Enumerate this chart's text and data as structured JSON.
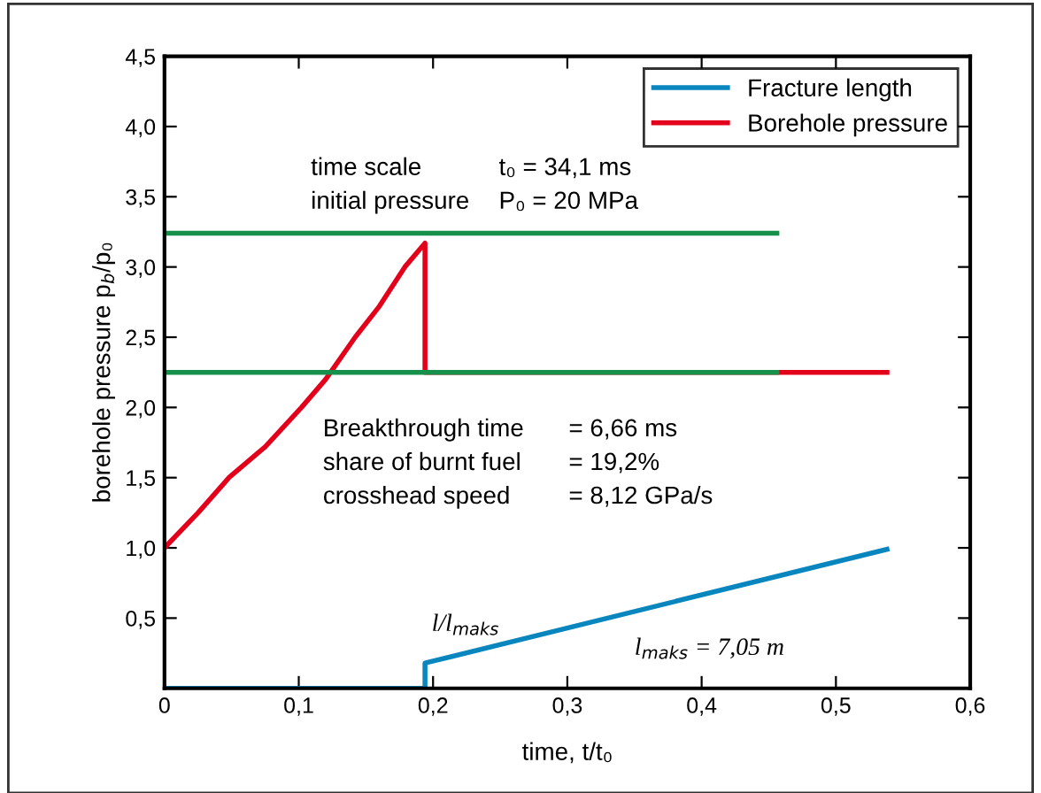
{
  "chart_data": {
    "type": "line",
    "xlabel": "time, t/t₀",
    "ylabel": "borehole pressure p$_{b}$/p₀",
    "xlim": [
      0,
      0.6
    ],
    "ylim": [
      0,
      4.5
    ],
    "xticks": [
      0,
      {
        "value": 0.1,
        "label": "0,1"
      },
      {
        "value": 0.2,
        "label": "0,2"
      },
      {
        "value": 0.3,
        "label": "0,3"
      },
      {
        "value": 0.4,
        "label": "0,4"
      },
      {
        "value": 0.5,
        "label": "0,5"
      },
      {
        "value": 0.6,
        "label": "0,6"
      }
    ],
    "yticks": [
      {
        "value": 0.5,
        "label": "0,5"
      },
      {
        "value": 1.0,
        "label": "1,0"
      },
      {
        "value": 1.5,
        "label": "1,5"
      },
      {
        "value": 2.0,
        "label": "2,0"
      },
      {
        "value": 2.5,
        "label": "2,5"
      },
      {
        "value": 3.0,
        "label": "3,0"
      },
      {
        "value": 3.5,
        "label": "3,5"
      },
      {
        "value": 4.0,
        "label": "4,0"
      },
      {
        "value": 4.5,
        "label": "4,5"
      }
    ],
    "grid": false,
    "legend": "top right",
    "marker": "none",
    "line_style": "solid",
    "series": [
      {
        "name": "Fracture length",
        "color": "#0a86bf",
        "x": [
          0,
          0.194,
          0.194,
          0.538
        ],
        "values": [
          0,
          0,
          0.18,
          0.99
        ]
      },
      {
        "name": "Borehole pressure",
        "color": "#e3001b",
        "x": [
          0,
          0.025,
          0.048,
          0.075,
          0.102,
          0.12,
          0.142,
          0.16,
          0.179,
          0.194,
          0.194,
          0.538
        ],
        "values": [
          1.0,
          1.25,
          1.5,
          1.72,
          2.0,
          2.2,
          2.5,
          2.72,
          3.0,
          3.17,
          2.25,
          2.25
        ]
      },
      {
        "color": "#16904a",
        "x": [
          0,
          0.456
        ],
        "values": [
          3.24,
          3.24
        ]
      },
      {
        "color": "#16904a",
        "x": [
          0,
          0.456
        ],
        "values": [
          2.25,
          2.25
        ]
      }
    ],
    "annotations": [
      "time scale",
      "t₀ = 34,1 ms",
      "initial pressure",
      "P₀ = 20 MPa",
      "Breakthrough time",
      "= 6,66 ms",
      "share of burnt fuel",
      "= 19,2%",
      "crosshead speed",
      "= 8,12 GPa/s",
      "l/l$_{maks}$",
      "l$_{maks}$ = 7,05 m"
    ]
  }
}
